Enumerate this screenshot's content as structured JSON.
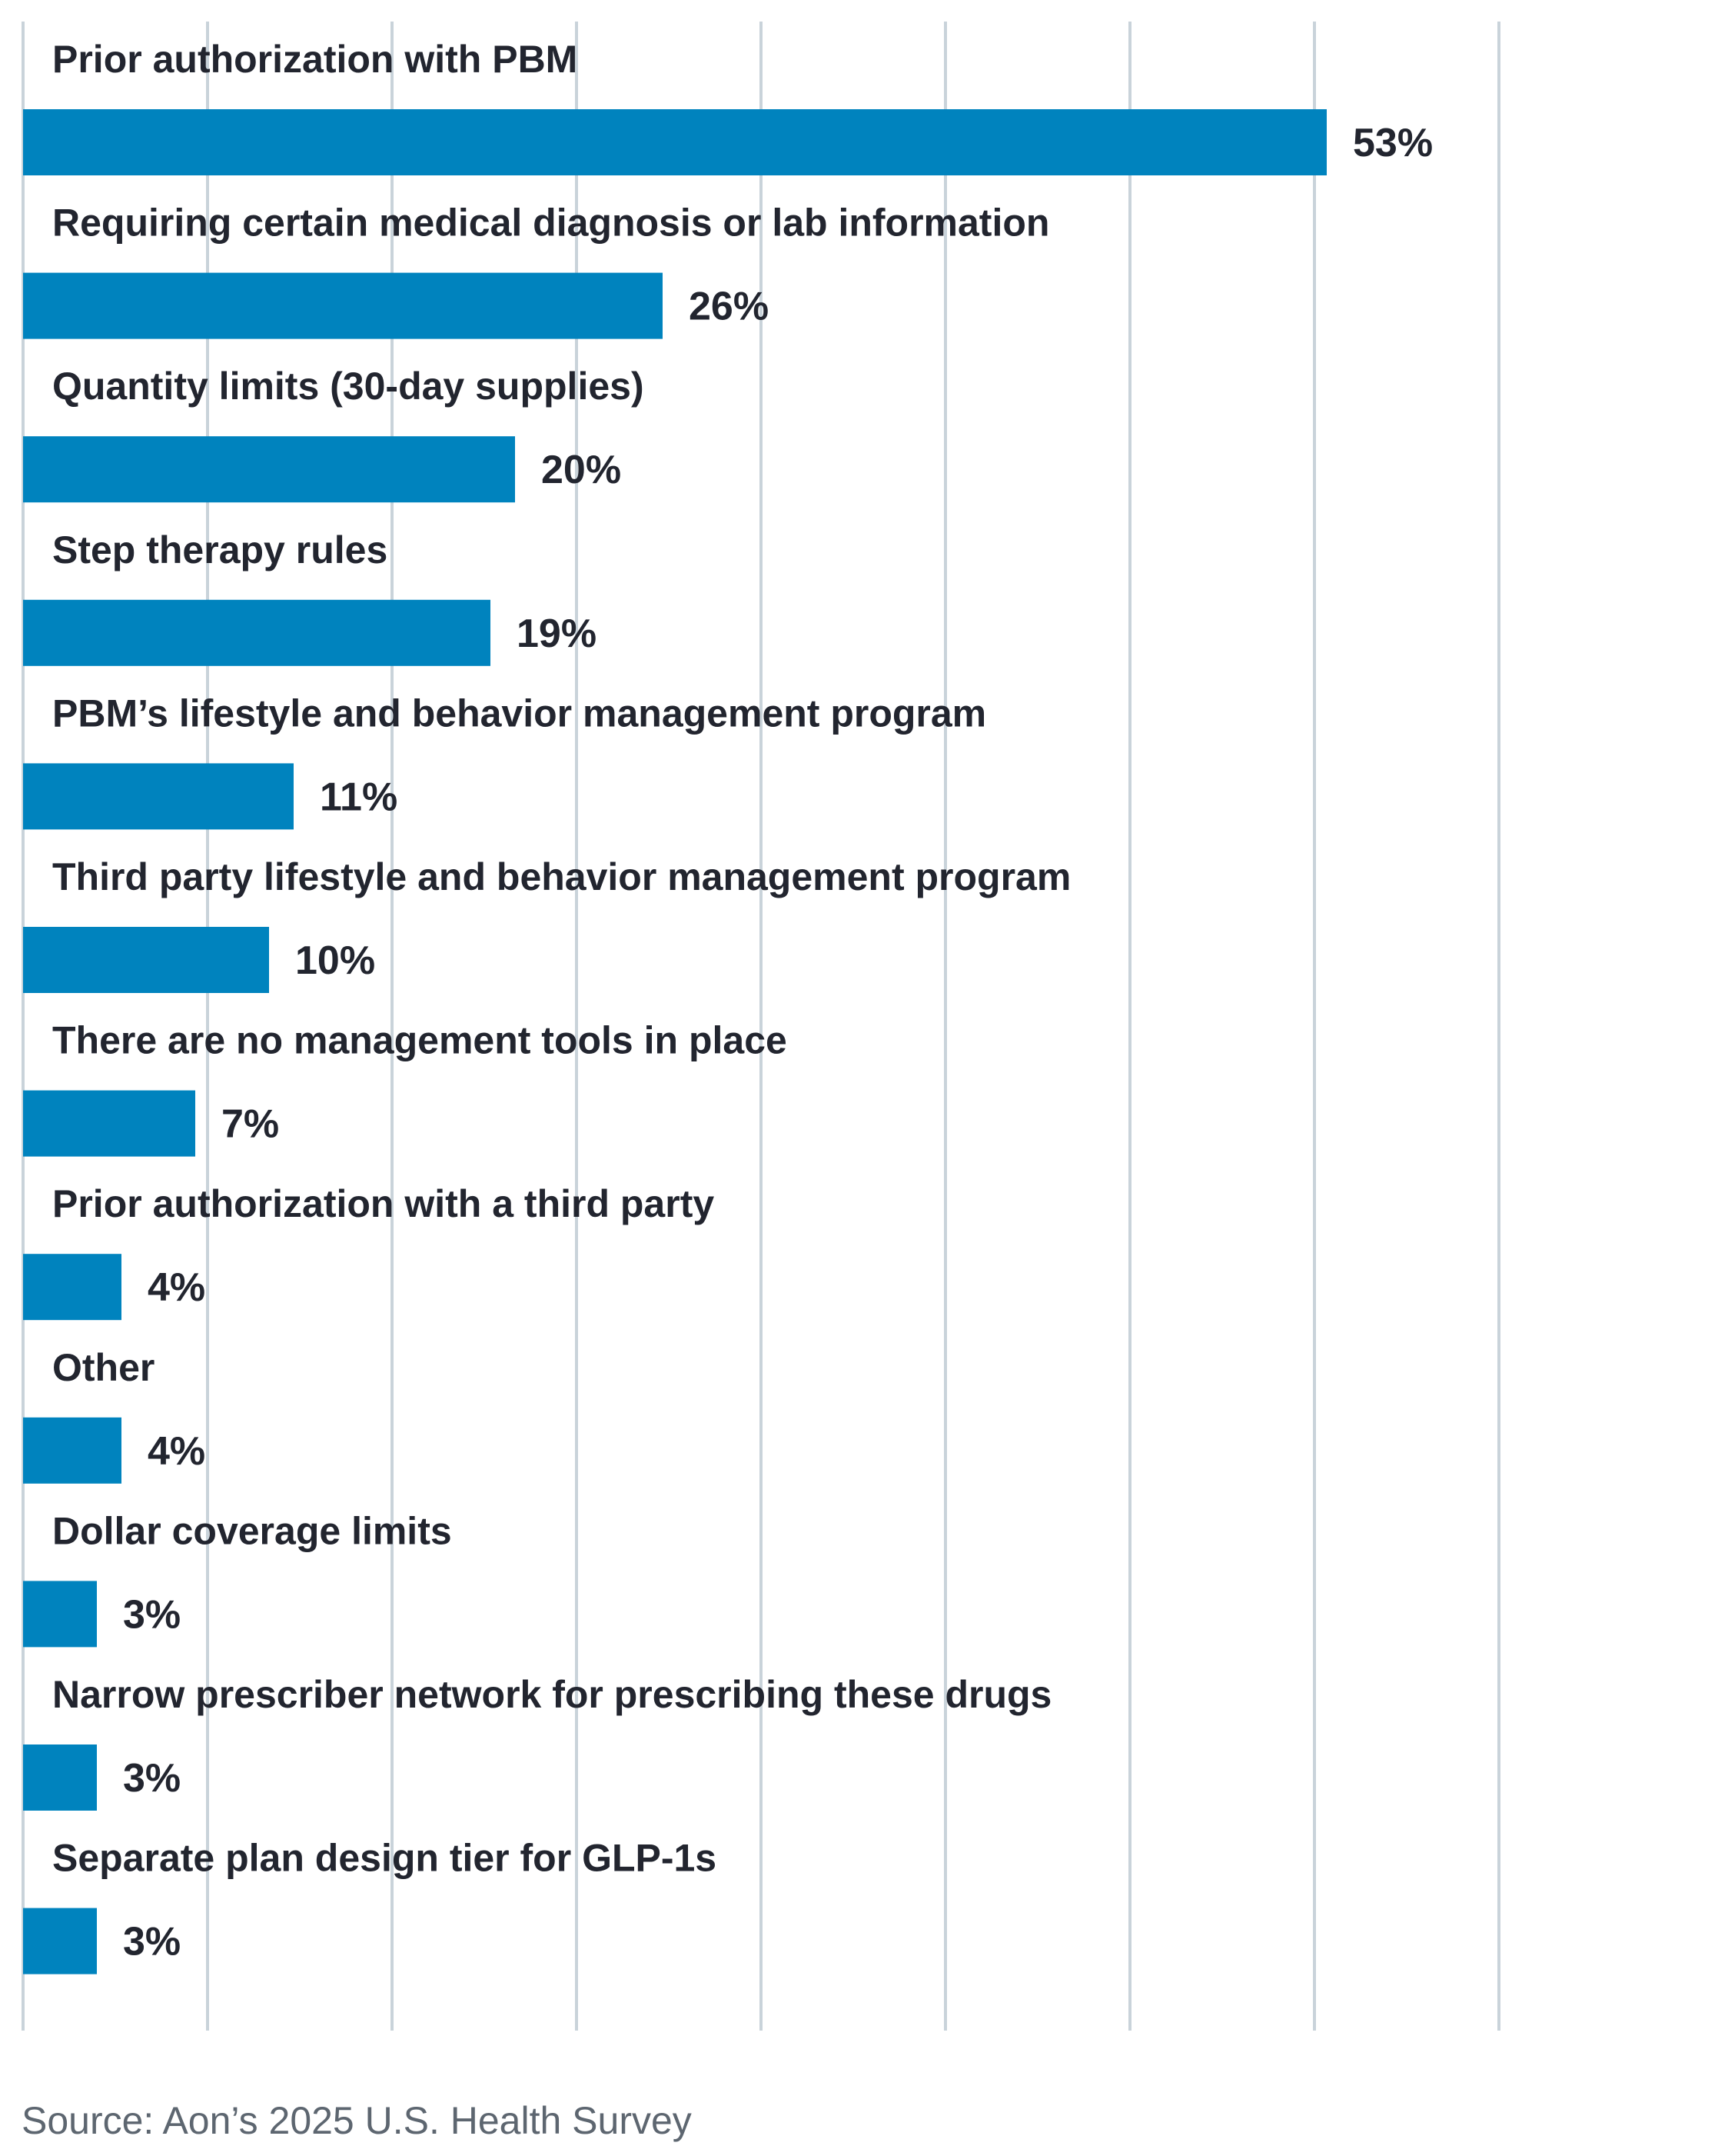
{
  "chart_data": {
    "type": "bar",
    "orientation": "horizontal",
    "title": "",
    "xlabel": "",
    "ylabel": "",
    "xlim": [
      0,
      60
    ],
    "grid": true,
    "value_suffix": "%",
    "categories": [
      "Prior authorization with PBM",
      "Requiring certain medical diagnosis or lab information",
      "Quantity limits (30-day supplies)",
      "Step therapy rules",
      "PBM’s lifestyle and behavior management program",
      "Third party lifestyle and behavior management program",
      "There are no management tools in place",
      "Prior authorization with a third party",
      "Other",
      "Dollar coverage limits",
      "Narrow prescriber network for prescribing these drugs",
      "Separate plan design tier for GLP-1s"
    ],
    "values": [
      53,
      26,
      20,
      19,
      11,
      10,
      7,
      4,
      4,
      3,
      3,
      3
    ],
    "value_labels": [
      "53%",
      "26%",
      "20%",
      "19%",
      "11%",
      "10%",
      "7%",
      "4%",
      "4%",
      "3%",
      "3%",
      "3%"
    ]
  },
  "colors": {
    "bar": "#0083be",
    "gridline": "#c9d3da",
    "text": "#22252f",
    "source_text": "#5d6670"
  },
  "source": "Source: Aon’s 2025 U.S. Health Survey"
}
